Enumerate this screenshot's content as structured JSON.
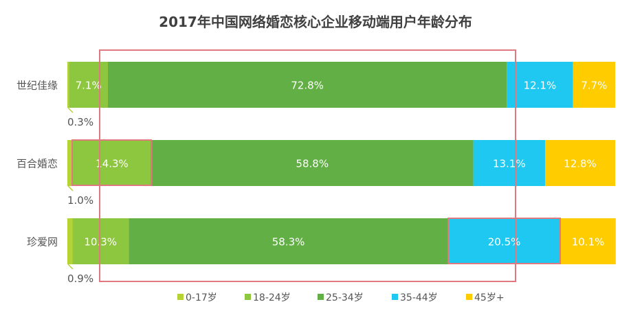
{
  "chart_data": {
    "type": "bar",
    "orientation": "horizontal-stacked-100",
    "title": "2017年中国网络婚恋核心企业移动端用户年龄分布",
    "categories": [
      "世纪佳缘",
      "百合婚恋",
      "珍爱网"
    ],
    "series": [
      {
        "name": "0-17岁",
        "color": "#b6d334",
        "values": [
          0.3,
          1.0,
          0.9
        ]
      },
      {
        "name": "18-24岁",
        "color": "#8dc63f",
        "values": [
          7.1,
          14.3,
          10.3
        ]
      },
      {
        "name": "25-34岁",
        "color": "#62af45",
        "values": [
          72.8,
          58.8,
          58.3
        ]
      },
      {
        "name": "35-44岁",
        "color": "#1ec8f0",
        "values": [
          12.1,
          13.1,
          20.5
        ]
      },
      {
        "name": "45岁+",
        "color": "#ffcc00",
        "values": [
          7.7,
          12.8,
          10.1
        ]
      }
    ],
    "value_suffix": "%",
    "xlim": [
      0,
      100
    ],
    "legend": "bottom",
    "grid": false
  }
}
